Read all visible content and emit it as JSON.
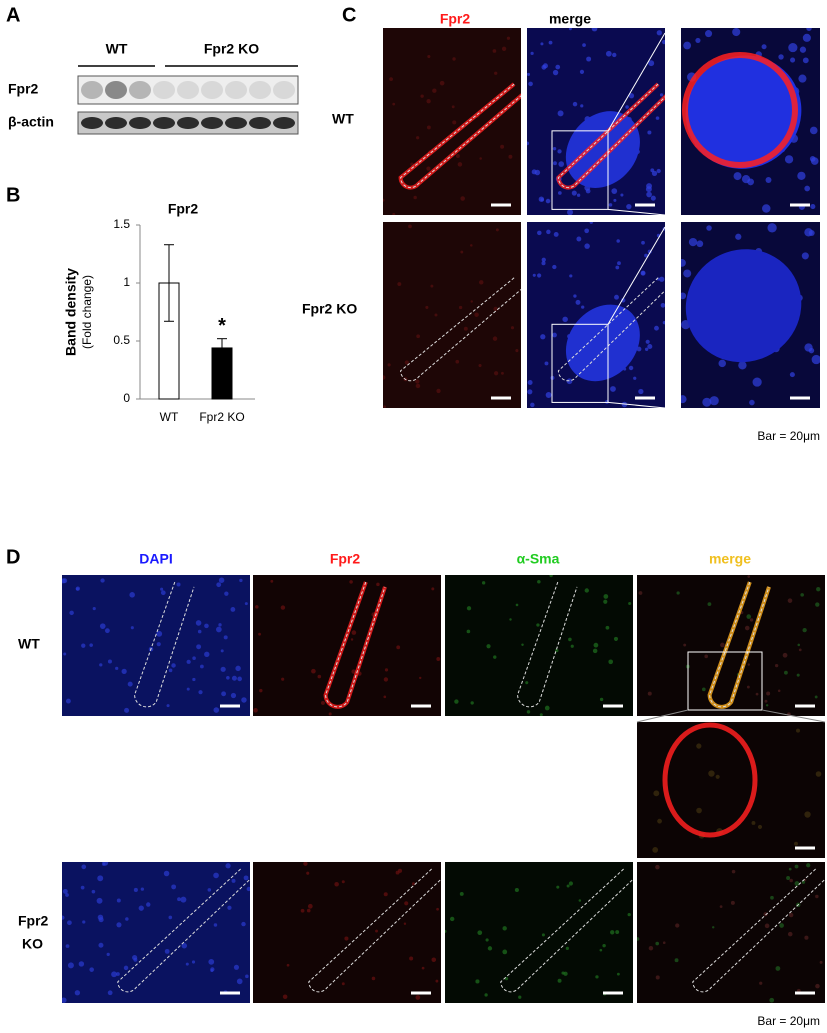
{
  "panel_labels": [
    "A",
    "B",
    "C",
    "D"
  ],
  "blot": {
    "groups": [
      "WT",
      "Fpr2 KO"
    ],
    "rows": [
      "Fpr2",
      "β-actin"
    ]
  },
  "chart_data": {
    "type": "bar",
    "title": "Fpr2",
    "ylabel": "Band density",
    "ylabel_sub": "(Fold change)",
    "categories": [
      "WT",
      "Fpr2 KO"
    ],
    "values": [
      1.0,
      0.44
    ],
    "errors": [
      0.33,
      0.08
    ],
    "colors": [
      "#ffffff",
      "#000000"
    ],
    "value_annotations": [
      null,
      "*"
    ],
    "ylim": [
      0,
      1.5
    ],
    "yticks": [
      0,
      0.5,
      1,
      1.5
    ]
  },
  "panel_c": {
    "columns": [
      "Fpr2",
      "merge"
    ],
    "rows": [
      "WT",
      "Fpr2 KO"
    ],
    "scale_note": "Bar = 20μm"
  },
  "panel_d": {
    "columns": [
      "DAPI",
      "Fpr2",
      "α-Sma",
      "merge"
    ],
    "rows": [
      [
        "WT"
      ],
      [
        "Fpr2",
        "KO"
      ]
    ],
    "scale_note": "Bar = 20μm"
  }
}
